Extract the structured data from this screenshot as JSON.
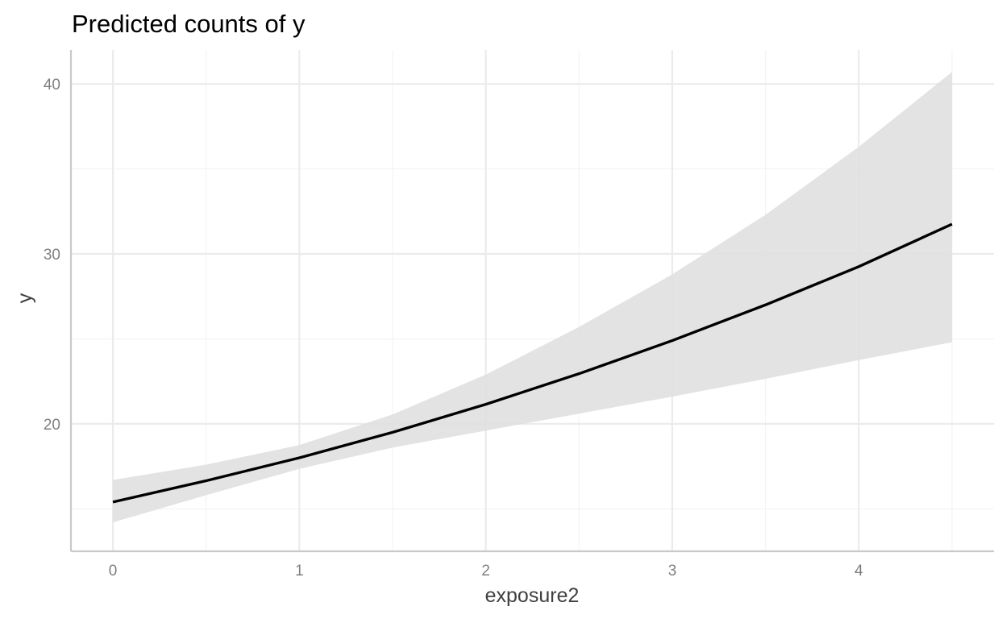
{
  "chart_data": {
    "type": "line",
    "title": "Predicted counts of y",
    "xlabel": "exposure2",
    "ylabel": "y",
    "xlim": [
      -0.225,
      4.725
    ],
    "ylim": [
      12.5,
      42
    ],
    "x_ticks": [
      0,
      1,
      2,
      3,
      4
    ],
    "x_tick_labels": [
      "0",
      "1",
      "2",
      "3",
      "4"
    ],
    "x_minor_ticks": [
      0.5,
      1.5,
      2.5,
      3.5,
      4.5
    ],
    "y_ticks": [
      20,
      30,
      40
    ],
    "y_tick_labels": [
      "20",
      "30",
      "40"
    ],
    "y_minor_ticks": [
      15,
      25,
      35
    ],
    "grid": true,
    "legend": "none",
    "series": [
      {
        "x": [
          0,
          0.5,
          1,
          1.5,
          2,
          2.5,
          3,
          3.5,
          4,
          4.5
        ],
        "values": [
          15.4,
          16.65,
          18.0,
          19.5,
          21.15,
          22.95,
          24.9,
          27.0,
          29.25,
          31.75
        ],
        "ci_lower": [
          14.2,
          15.8,
          17.35,
          18.6,
          19.6,
          20.6,
          21.6,
          22.65,
          23.75,
          24.8
        ],
        "ci_upper": [
          16.7,
          17.6,
          18.75,
          20.55,
          22.9,
          25.7,
          28.8,
          32.3,
          36.3,
          40.7
        ],
        "line_color": "#000000",
        "ribbon_color": "#e0e0e0"
      }
    ]
  }
}
